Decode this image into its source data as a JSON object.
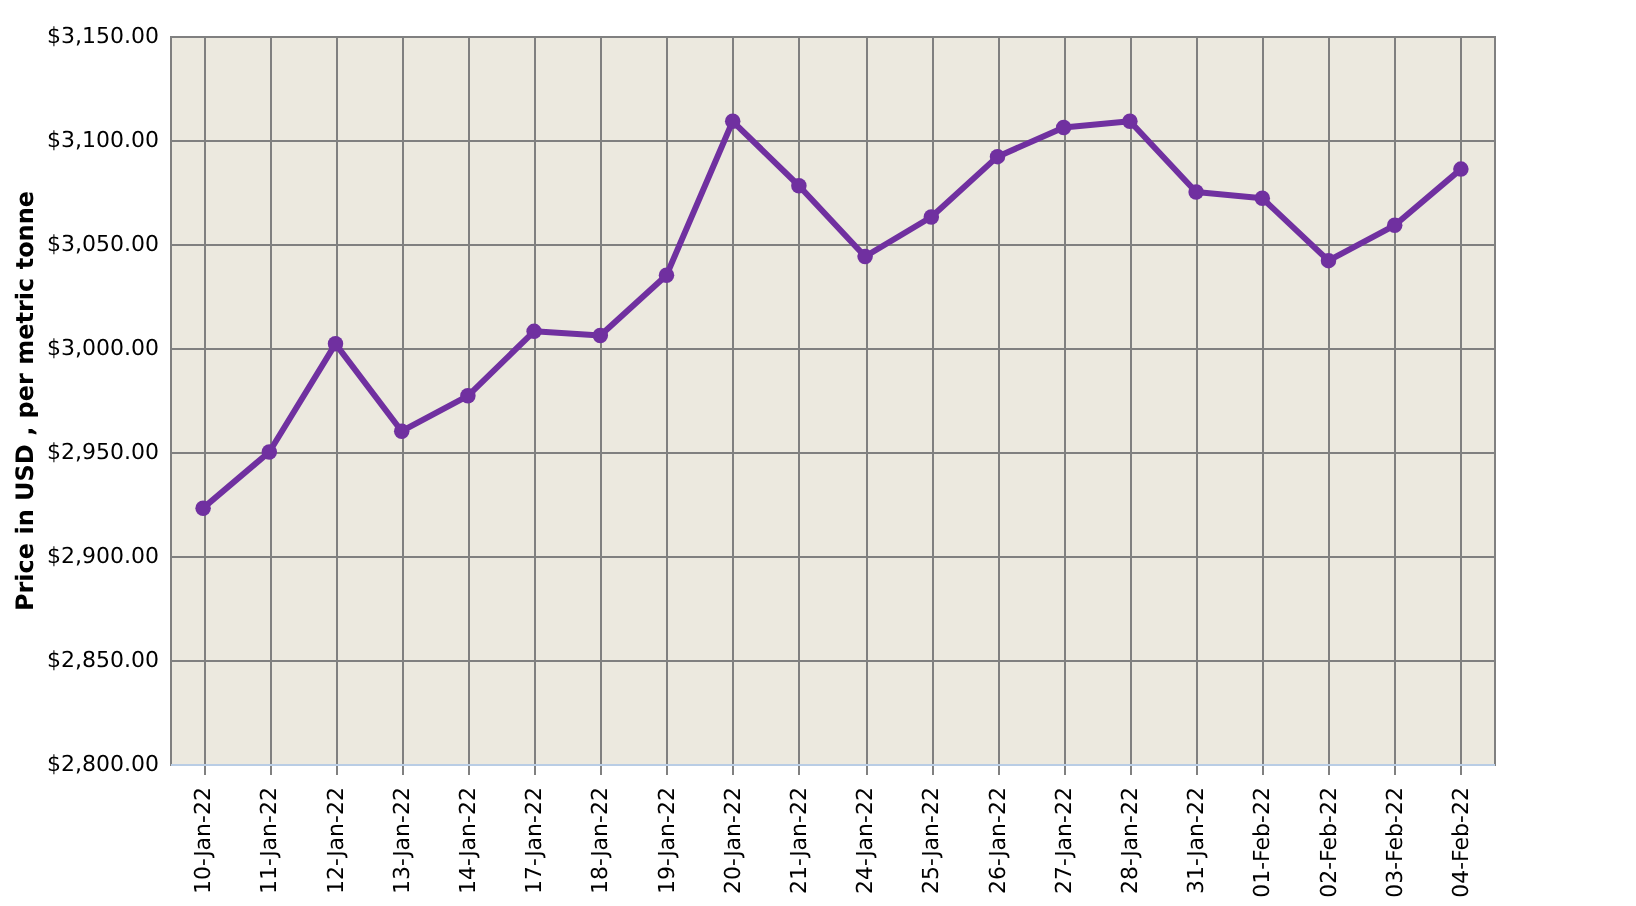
{
  "chart_data": {
    "type": "line",
    "ylabel": "Price in USD , per metric tonne",
    "categories": [
      "10-Jan-22",
      "11-Jan-22",
      "12-Jan-22",
      "13-Jan-22",
      "14-Jan-22",
      "17-Jan-22",
      "18-Jan-22",
      "19-Jan-22",
      "20-Jan-22",
      "21-Jan-22",
      "24-Jan-22",
      "25-Jan-22",
      "26-Jan-22",
      "27-Jan-22",
      "28-Jan-22",
      "31-Jan-22",
      "01-Feb-22",
      "02-Feb-22",
      "03-Feb-22",
      "04-Feb-22"
    ],
    "series": [
      {
        "color": "#7030a0",
        "values": [
          2923,
          2950,
          3002,
          2960,
          2977,
          3008,
          3006,
          3035,
          3109,
          3078,
          3044,
          3063,
          3092,
          3106,
          3109,
          3075,
          3072,
          3042,
          3059,
          3086
        ]
      }
    ],
    "ylim": [
      2800,
      3150
    ],
    "yticks": [
      {
        "value": 2800,
        "label": "$2,800.00"
      },
      {
        "value": 2850,
        "label": "$2,850.00"
      },
      {
        "value": 2900,
        "label": "$2,900.00"
      },
      {
        "value": 2950,
        "label": "$2,950.00"
      },
      {
        "value": 3000,
        "label": "$3,000.00"
      },
      {
        "value": 3050,
        "label": "$3,050.00"
      },
      {
        "value": 3100,
        "label": "$3,100.00"
      },
      {
        "value": 3150,
        "label": "$3,150.00"
      }
    ],
    "grid": true,
    "marker": "circle",
    "line_style": "solid"
  }
}
